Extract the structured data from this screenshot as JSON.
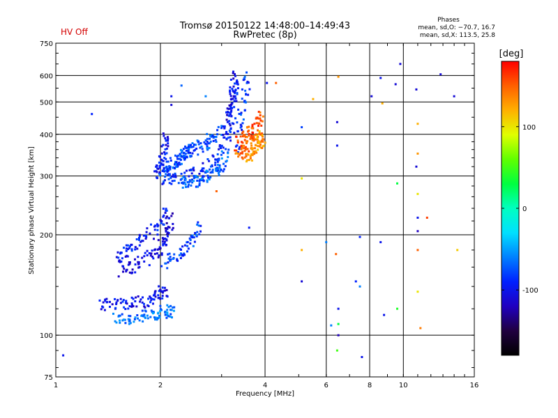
{
  "status": {
    "hv": "HV Off"
  },
  "header": {
    "title": "Tromsø 20150122 14:48:00–14:49:43",
    "subtitle": "RwPretec (8p)"
  },
  "phases": {
    "title": "Phases",
    "o_line": "mean, sd,O: −70.7, 16.7",
    "x_line": "mean, sd,X: 113.5, 25.8"
  },
  "chart_data": {
    "type": "scatter",
    "xlabel": "Frequency [MHz]",
    "ylabel": "Stationary phase Virtual Height [km]",
    "x_scale": "log",
    "y_scale": "log",
    "xlim": [
      1,
      16
    ],
    "ylim": [
      75,
      750
    ],
    "x_ticks": [
      1,
      2,
      4,
      6,
      8,
      10,
      16
    ],
    "y_ticks": [
      75,
      100,
      200,
      300,
      400,
      500,
      600,
      750
    ],
    "grid": true,
    "colorbar": {
      "label": "[deg]",
      "range": [
        -180,
        180
      ],
      "ticks": [
        100,
        0,
        -100
      ],
      "colors": [
        "#ff0000",
        "#ff6000",
        "#ffb000",
        "#e0ff00",
        "#60ff00",
        "#00ff40",
        "#00ffc0",
        "#00e0ff",
        "#0080ff",
        "#0020ff",
        "#2000c0",
        "#200040",
        "#000000"
      ]
    },
    "series": [
      {
        "traces": [
          {
            "f": [
              1.47,
              1.6,
              1.75,
              1.9,
              2.0,
              2.1,
              2.15
            ],
            "h": [
              112,
              112,
              113,
              115,
              117,
              118,
              118
            ],
            "phase": -65
          },
          {
            "f": [
              1.35,
              1.45,
              1.6,
              1.75,
              1.9,
              2.0,
              2.07
            ],
            "h": [
              123,
              125,
              125,
              126,
              128,
              133,
              137
            ],
            "phase": -100
          },
          {
            "f": [
              1.55,
              1.65,
              1.8,
              1.95,
              2.05,
              2.1,
              2.15
            ],
            "h": [
              155,
              160,
              168,
              178,
              190,
              205,
              225
            ],
            "phase": -110
          },
          {
            "f": [
              1.5,
              1.6,
              1.7,
              1.85,
              2.0,
              2.1
            ],
            "h": [
              170,
              178,
              188,
              200,
              215,
              240
            ],
            "phase": -95
          },
          {
            "f": [
              2.05,
              2.2,
              2.35,
              2.5,
              2.6
            ],
            "h": [
              165,
              170,
              180,
              195,
              210
            ],
            "phase": -80
          },
          {
            "f": [
              2.0,
              2.2,
              2.4,
              2.6,
              2.8,
              3.0,
              3.15,
              3.25,
              3.3
            ],
            "h": [
              295,
              296,
              300,
              310,
              325,
              350,
              400,
              480,
              560
            ],
            "phase": -90
          },
          {
            "f": [
              2.0,
              2.1,
              2.2,
              2.3,
              2.4,
              2.55,
              2.7,
              2.85,
              3.0
            ],
            "h": [
              310,
              320,
              330,
              345,
              355,
              365,
              375,
              390,
              410
            ],
            "phase": -75
          },
          {
            "f": [
              2.3,
              2.45,
              2.6,
              2.75,
              2.9,
              3.0,
              3.1
            ],
            "h": [
              285,
              288,
              292,
              300,
              310,
              325,
              345
            ],
            "phase": -70
          },
          {
            "f": [
              3.05,
              3.15,
              3.2,
              3.25,
              3.3
            ],
            "h": [
              400,
              450,
              500,
              550,
              600
            ],
            "phase": -105
          },
          {
            "f": [
              3.3,
              3.4,
              3.5,
              3.6
            ],
            "h": [
              360,
              450,
              520,
              600
            ],
            "phase": -85
          },
          {
            "f": [
              1.95,
              2.0,
              2.05,
              2.08
            ],
            "h": [
              300,
              330,
              360,
              390
            ],
            "phase": -100
          },
          {
            "f": [
              2.1,
              2.2,
              2.35,
              2.5
            ],
            "h": [
              305,
              320,
              345,
              370
            ],
            "phase": -80
          }
        ]
      },
      {
        "traces": [
          {
            "f": [
              3.3,
              3.45,
              3.6,
              3.75,
              3.9
            ],
            "h": [
              345,
              355,
              365,
              380,
              400
            ],
            "phase": 145
          },
          {
            "f": [
              3.35,
              3.5,
              3.65,
              3.8,
              3.95
            ],
            "h": [
              380,
              395,
              410,
              430,
              460
            ],
            "phase": 155
          },
          {
            "f": [
              3.55,
              3.7,
              3.85,
              3.95
            ],
            "h": [
              340,
              355,
              375,
              395
            ],
            "phase": 130
          }
        ]
      },
      {
        "scatter": [
          {
            "f": 1.27,
            "h": 460,
            "phase": -90
          },
          {
            "f": 2.15,
            "h": 490,
            "phase": -110
          },
          {
            "f": 2.15,
            "h": 520,
            "phase": -100
          },
          {
            "f": 2.3,
            "h": 560,
            "phase": -70
          },
          {
            "f": 2.7,
            "h": 520,
            "phase": -60
          },
          {
            "f": 2.9,
            "h": 270,
            "phase": 150
          },
          {
            "f": 3.6,
            "h": 210,
            "phase": -95
          },
          {
            "f": 4.05,
            "h": 570,
            "phase": -100
          },
          {
            "f": 4.3,
            "h": 570,
            "phase": 150
          },
          {
            "f": 5.1,
            "h": 420,
            "phase": -80
          },
          {
            "f": 5.5,
            "h": 510,
            "phase": 120
          },
          {
            "f": 5.1,
            "h": 295,
            "phase": 100
          },
          {
            "f": 5.1,
            "h": 180,
            "phase": 120
          },
          {
            "f": 5.1,
            "h": 145,
            "phase": -110
          },
          {
            "f": 6.0,
            "h": 190,
            "phase": -60
          },
          {
            "f": 6.2,
            "h": 107,
            "phase": -60
          },
          {
            "f": 6.4,
            "h": 175,
            "phase": 150
          },
          {
            "f": 6.45,
            "h": 435,
            "phase": -110
          },
          {
            "f": 6.45,
            "h": 370,
            "phase": -100
          },
          {
            "f": 6.5,
            "h": 120,
            "phase": -100
          },
          {
            "f": 6.5,
            "h": 108,
            "phase": 30
          },
          {
            "f": 6.5,
            "h": 100,
            "phase": -120
          },
          {
            "f": 6.45,
            "h": 90,
            "phase": 50
          },
          {
            "f": 6.5,
            "h": 595,
            "phase": 130
          },
          {
            "f": 7.3,
            "h": 145,
            "phase": -90
          },
          {
            "f": 7.5,
            "h": 197,
            "phase": -90
          },
          {
            "f": 7.5,
            "h": 140,
            "phase": -60
          },
          {
            "f": 7.6,
            "h": 86,
            "phase": -100
          },
          {
            "f": 8.1,
            "h": 520,
            "phase": -110
          },
          {
            "f": 8.6,
            "h": 590,
            "phase": -100
          },
          {
            "f": 8.6,
            "h": 190,
            "phase": -100
          },
          {
            "f": 8.7,
            "h": 495,
            "phase": 120
          },
          {
            "f": 8.8,
            "h": 115,
            "phase": -100
          },
          {
            "f": 9.5,
            "h": 565,
            "phase": -110
          },
          {
            "f": 9.6,
            "h": 285,
            "phase": 30
          },
          {
            "f": 9.8,
            "h": 650,
            "phase": -110
          },
          {
            "f": 9.6,
            "h": 120,
            "phase": 40
          },
          {
            "f": 10.9,
            "h": 545,
            "phase": -110
          },
          {
            "f": 11.0,
            "h": 430,
            "phase": 120
          },
          {
            "f": 11.0,
            "h": 350,
            "phase": 130
          },
          {
            "f": 10.9,
            "h": 320,
            "phase": -110
          },
          {
            "f": 11.0,
            "h": 265,
            "phase": 100
          },
          {
            "f": 11.0,
            "h": 225,
            "phase": -100
          },
          {
            "f": 11.0,
            "h": 205,
            "phase": -120
          },
          {
            "f": 11.0,
            "h": 180,
            "phase": 150
          },
          {
            "f": 11.0,
            "h": 135,
            "phase": 100
          },
          {
            "f": 11.2,
            "h": 105,
            "phase": 140
          },
          {
            "f": 11.7,
            "h": 225,
            "phase": 160
          },
          {
            "f": 12.8,
            "h": 605,
            "phase": -110
          },
          {
            "f": 14.0,
            "h": 520,
            "phase": -110
          },
          {
            "f": 14.3,
            "h": 180,
            "phase": 110
          },
          {
            "f": 1.05,
            "h": 87,
            "phase": -100
          }
        ]
      }
    ]
  }
}
